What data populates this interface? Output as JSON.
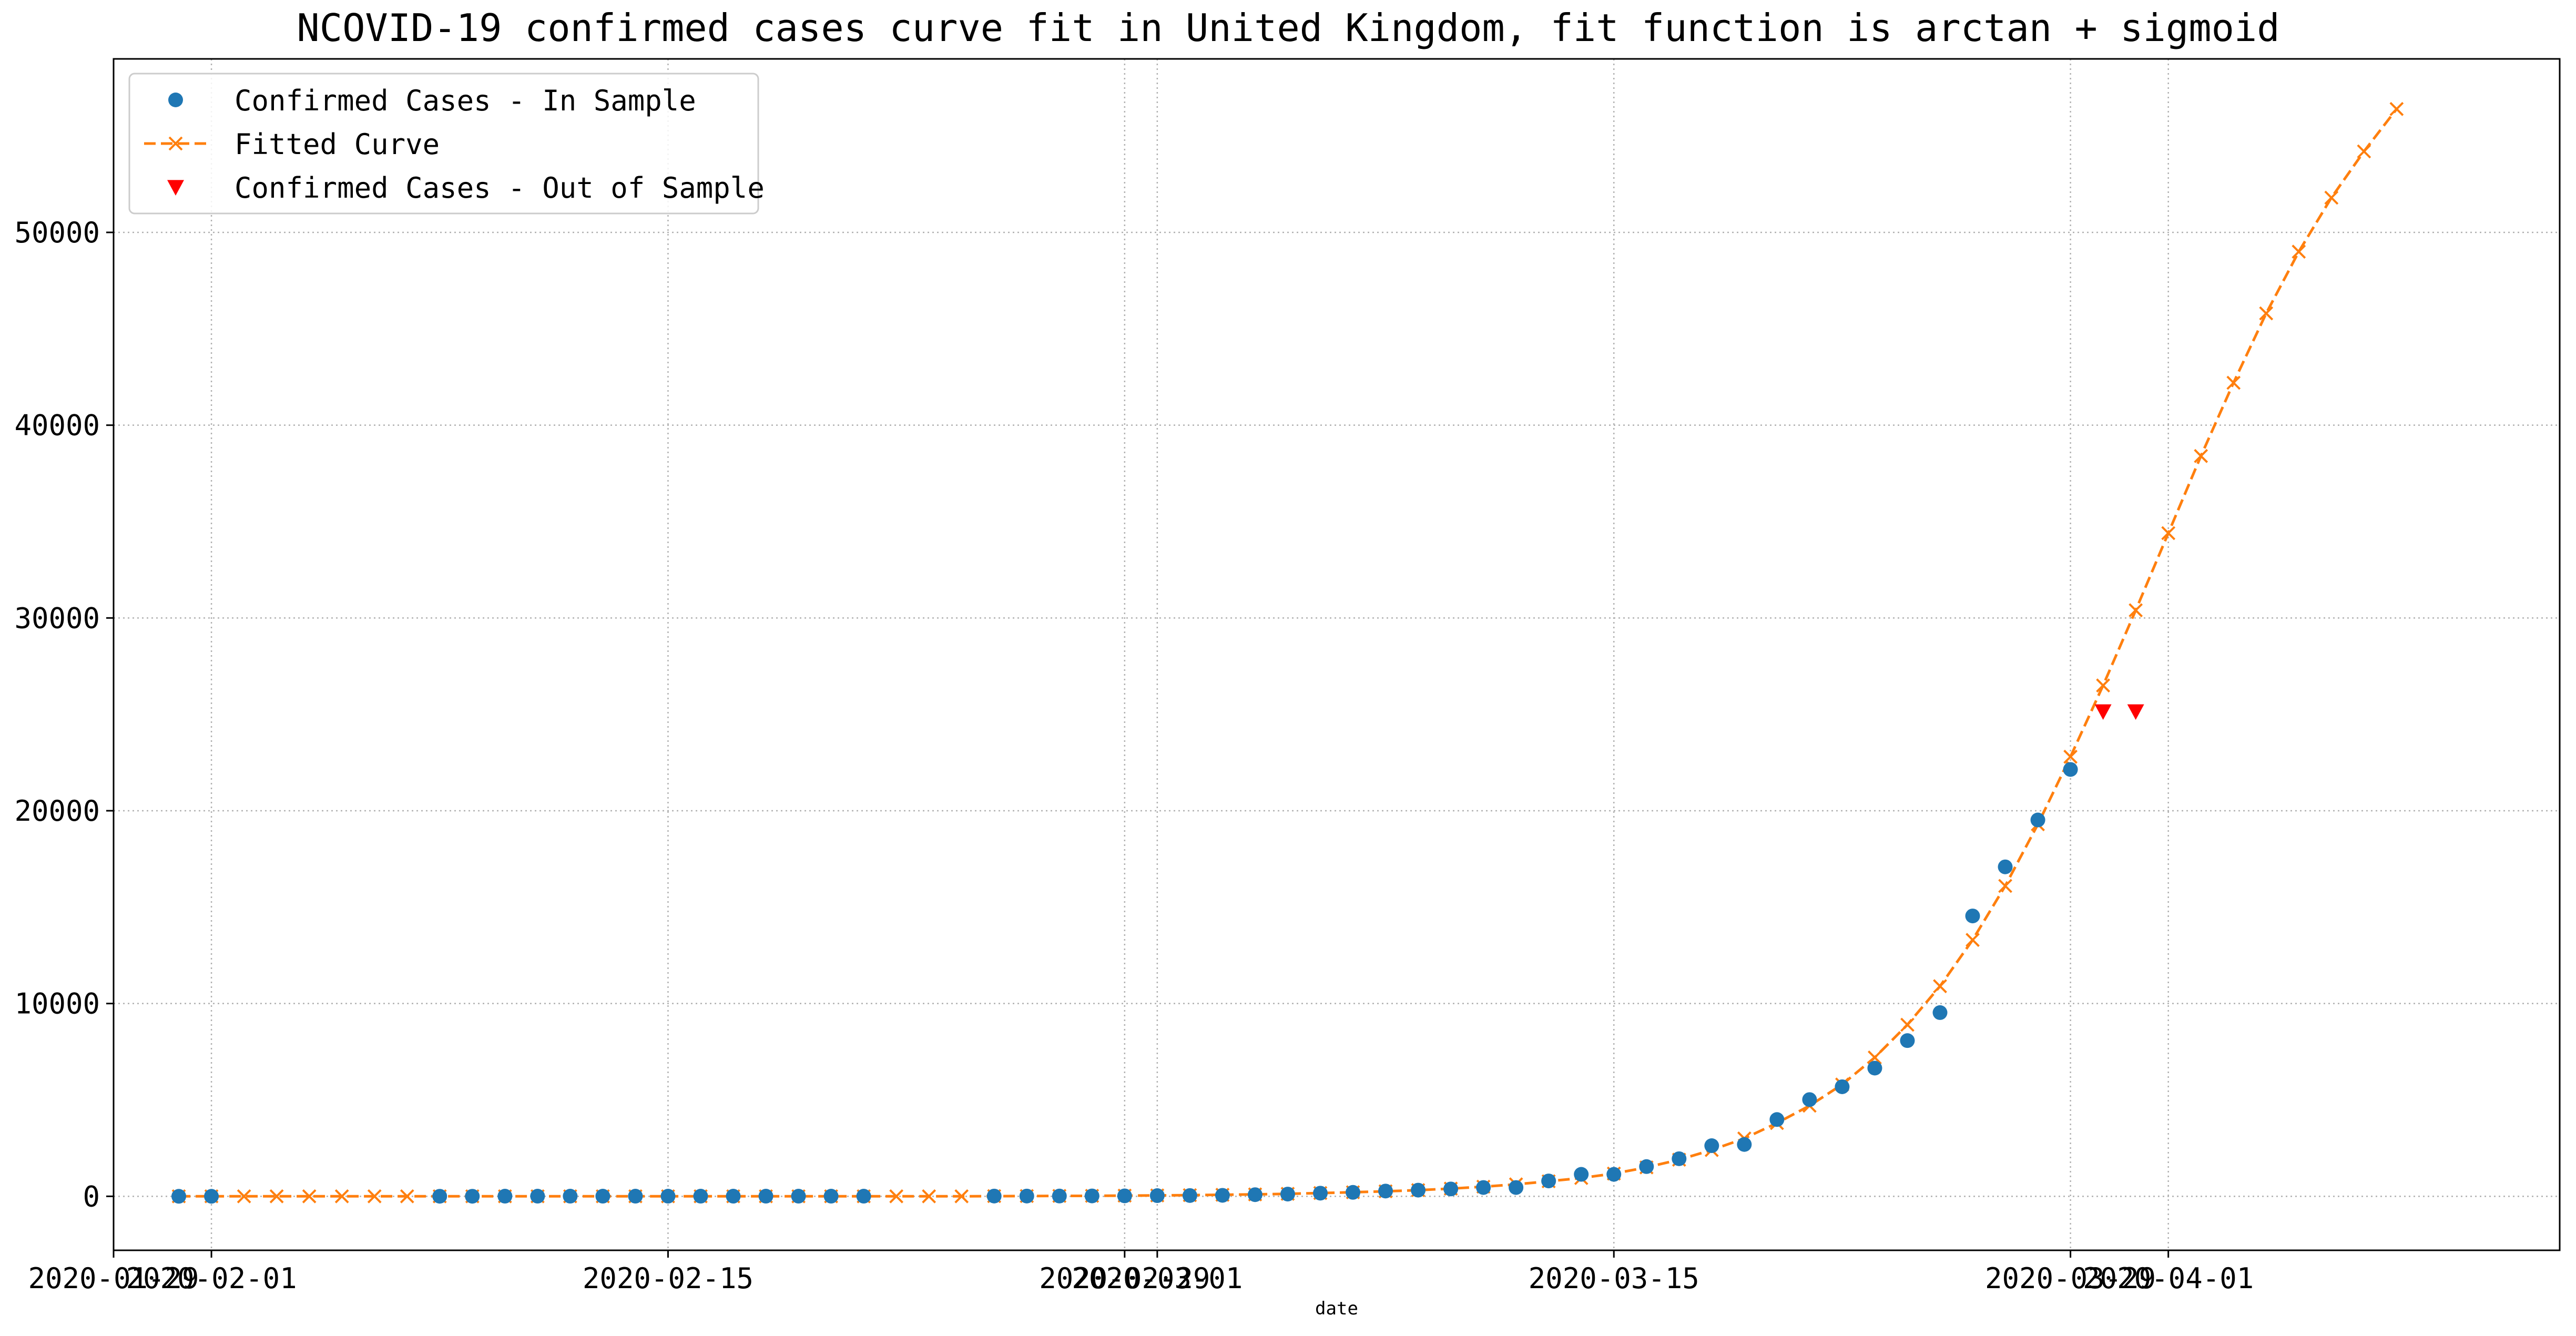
{
  "chart_data": {
    "type": "line",
    "title": "NCOVID-19 confirmed cases curve fit in United Kingdom, fit function is arctan + sigmoid",
    "xlabel": "date",
    "ylabel": "",
    "x_type": "date",
    "xlim": [
      "2020-01-29",
      "2020-04-13"
    ],
    "ylim": [
      -2800,
      59000
    ],
    "x_ticks": [
      {
        "date": "2020-01-29",
        "label": "2020-01-29"
      },
      {
        "date": "2020-02-01",
        "label": "2020-02-01"
      },
      {
        "date": "2020-02-15",
        "label": "2020-02-15"
      },
      {
        "date": "2020-02-29",
        "label": "2020-02-29"
      },
      {
        "date": "2020-03-01",
        "label": "2020-03-01"
      },
      {
        "date": "2020-03-15",
        "label": "2020-03-15"
      },
      {
        "date": "2020-03-29",
        "label": "2020-03-29"
      },
      {
        "date": "2020-04-01",
        "label": "2020-04-01"
      }
    ],
    "y_ticks": [
      0,
      10000,
      20000,
      30000,
      40000,
      50000
    ],
    "grid": true,
    "legend_position": "top-left",
    "series": [
      {
        "name": "Confirmed Cases - In Sample",
        "kind": "scatter",
        "marker": "circle",
        "color": "#1f77b4",
        "points": [
          [
            "2020-01-31",
            2
          ],
          [
            "2020-02-01",
            2
          ],
          [
            "2020-02-08",
            3
          ],
          [
            "2020-02-09",
            3
          ],
          [
            "2020-02-10",
            8
          ],
          [
            "2020-02-11",
            8
          ],
          [
            "2020-02-12",
            9
          ],
          [
            "2020-02-13",
            9
          ],
          [
            "2020-02-14",
            9
          ],
          [
            "2020-02-15",
            9
          ],
          [
            "2020-02-16",
            9
          ],
          [
            "2020-02-17",
            9
          ],
          [
            "2020-02-18",
            9
          ],
          [
            "2020-02-19",
            9
          ],
          [
            "2020-02-20",
            9
          ],
          [
            "2020-02-21",
            9
          ],
          [
            "2020-02-25",
            13
          ],
          [
            "2020-02-26",
            13
          ],
          [
            "2020-02-27",
            15
          ],
          [
            "2020-02-28",
            20
          ],
          [
            "2020-02-29",
            23
          ],
          [
            "2020-03-01",
            36
          ],
          [
            "2020-03-02",
            40
          ],
          [
            "2020-03-03",
            51
          ],
          [
            "2020-03-04",
            85
          ],
          [
            "2020-03-05",
            115
          ],
          [
            "2020-03-06",
            163
          ],
          [
            "2020-03-07",
            206
          ],
          [
            "2020-03-08",
            273
          ],
          [
            "2020-03-09",
            321
          ],
          [
            "2020-03-10",
            382
          ],
          [
            "2020-03-11",
            456
          ],
          [
            "2020-03-12",
            456
          ],
          [
            "2020-03-13",
            798
          ],
          [
            "2020-03-14",
            1140
          ],
          [
            "2020-03-15",
            1140
          ],
          [
            "2020-03-16",
            1543
          ],
          [
            "2020-03-17",
            1950
          ],
          [
            "2020-03-18",
            2626
          ],
          [
            "2020-03-19",
            2689
          ],
          [
            "2020-03-20",
            3983
          ],
          [
            "2020-03-21",
            5018
          ],
          [
            "2020-03-22",
            5683
          ],
          [
            "2020-03-23",
            6650
          ],
          [
            "2020-03-24",
            8077
          ],
          [
            "2020-03-25",
            9529
          ],
          [
            "2020-03-26",
            14543
          ],
          [
            "2020-03-27",
            17089
          ],
          [
            "2020-03-28",
            19522
          ],
          [
            "2020-03-29",
            22141
          ]
        ]
      },
      {
        "name": "Fitted Curve",
        "kind": "line",
        "line_style": "dashed",
        "marker": "x",
        "color": "#ff7f0e",
        "points": [
          [
            "2020-01-31",
            0
          ],
          [
            "2020-02-01",
            0
          ],
          [
            "2020-02-02",
            0
          ],
          [
            "2020-02-03",
            0
          ],
          [
            "2020-02-04",
            0
          ],
          [
            "2020-02-05",
            0
          ],
          [
            "2020-02-06",
            0
          ],
          [
            "2020-02-07",
            0
          ],
          [
            "2020-02-08",
            0
          ],
          [
            "2020-02-09",
            0
          ],
          [
            "2020-02-10",
            0
          ],
          [
            "2020-02-11",
            0
          ],
          [
            "2020-02-12",
            0
          ],
          [
            "2020-02-13",
            0
          ],
          [
            "2020-02-14",
            0
          ],
          [
            "2020-02-15",
            0
          ],
          [
            "2020-02-16",
            0
          ],
          [
            "2020-02-17",
            0
          ],
          [
            "2020-02-18",
            0
          ],
          [
            "2020-02-19",
            0
          ],
          [
            "2020-02-20",
            0
          ],
          [
            "2020-02-21",
            0
          ],
          [
            "2020-02-22",
            0
          ],
          [
            "2020-02-23",
            0
          ],
          [
            "2020-02-24",
            0
          ],
          [
            "2020-02-25",
            10
          ],
          [
            "2020-02-26",
            15
          ],
          [
            "2020-02-27",
            20
          ],
          [
            "2020-02-28",
            25
          ],
          [
            "2020-02-29",
            35
          ],
          [
            "2020-03-01",
            45
          ],
          [
            "2020-03-02",
            60
          ],
          [
            "2020-03-03",
            80
          ],
          [
            "2020-03-04",
            100
          ],
          [
            "2020-03-05",
            130
          ],
          [
            "2020-03-06",
            170
          ],
          [
            "2020-03-07",
            210
          ],
          [
            "2020-03-08",
            260
          ],
          [
            "2020-03-09",
            320
          ],
          [
            "2020-03-10",
            400
          ],
          [
            "2020-03-11",
            500
          ],
          [
            "2020-03-12",
            620
          ],
          [
            "2020-03-13",
            780
          ],
          [
            "2020-03-14",
            950
          ],
          [
            "2020-03-15",
            1180
          ],
          [
            "2020-03-16",
            1500
          ],
          [
            "2020-03-17",
            1900
          ],
          [
            "2020-03-18",
            2400
          ],
          [
            "2020-03-19",
            3000
          ],
          [
            "2020-03-20",
            3800
          ],
          [
            "2020-03-21",
            4700
          ],
          [
            "2020-03-22",
            5800
          ],
          [
            "2020-03-23",
            7200
          ],
          [
            "2020-03-24",
            8900
          ],
          [
            "2020-03-25",
            10900
          ],
          [
            "2020-03-26",
            13300
          ],
          [
            "2020-03-27",
            16100
          ],
          [
            "2020-03-28",
            19300
          ],
          [
            "2020-03-29",
            22800
          ],
          [
            "2020-03-30",
            26500
          ],
          [
            "2020-03-31",
            30400
          ],
          [
            "2020-04-01",
            34400
          ],
          [
            "2020-04-02",
            38400
          ],
          [
            "2020-04-03",
            42200
          ],
          [
            "2020-04-04",
            45800
          ],
          [
            "2020-04-05",
            49000
          ],
          [
            "2020-04-06",
            51800
          ],
          [
            "2020-04-07",
            54200
          ],
          [
            "2020-04-08",
            56400
          ]
        ]
      },
      {
        "name": "Confirmed Cases - Out of Sample",
        "kind": "scatter",
        "marker": "triangle-down",
        "color": "#ff0000",
        "points": [
          [
            "2020-03-30",
            25150
          ],
          [
            "2020-03-31",
            25150
          ]
        ]
      }
    ]
  }
}
